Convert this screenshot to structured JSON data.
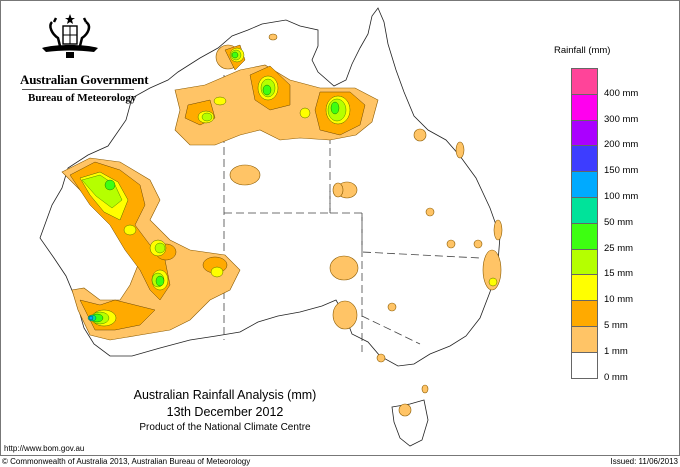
{
  "header": {
    "government": "Australian Government",
    "bureau": "Bureau of Meteorology"
  },
  "title": {
    "main": "Australian Rainfall Analysis (mm)",
    "date": "13th December 2012",
    "product": "Product of the National Climate Centre"
  },
  "legend": {
    "title": "Rainfall (mm)",
    "boxes": [
      {
        "color": "#ff4499"
      },
      {
        "color": "#ff00ee"
      },
      {
        "color": "#aa00ff"
      },
      {
        "color": "#3d3dff"
      },
      {
        "color": "#00aaff"
      },
      {
        "color": "#00e39a"
      },
      {
        "color": "#3dff11"
      },
      {
        "color": "#b5ff00"
      },
      {
        "color": "#ffff00"
      },
      {
        "color": "#ffaa00"
      },
      {
        "color": "#ffc466"
      },
      {
        "color": "#ffffff"
      }
    ],
    "labels": [
      "400 mm",
      "300 mm",
      "200 mm",
      "150 mm",
      "100 mm",
      "50 mm",
      "25 mm",
      "15 mm",
      "10 mm",
      "5 mm",
      "1 mm",
      "0 mm"
    ]
  },
  "footer": {
    "url": "http://www.bom.gov.au",
    "copyright": "© Commonwealth of Australia 2013, Australian Bureau of Meteorology",
    "issued": "Issued: 11/06/2013"
  },
  "colors": {
    "light_orange": "#ffc466",
    "orange": "#ffaa00",
    "yellow": "#ffff00",
    "yellow_green": "#b5ff00",
    "green": "#3dff11",
    "teal": "#00e39a",
    "cyan": "#00aaff"
  }
}
